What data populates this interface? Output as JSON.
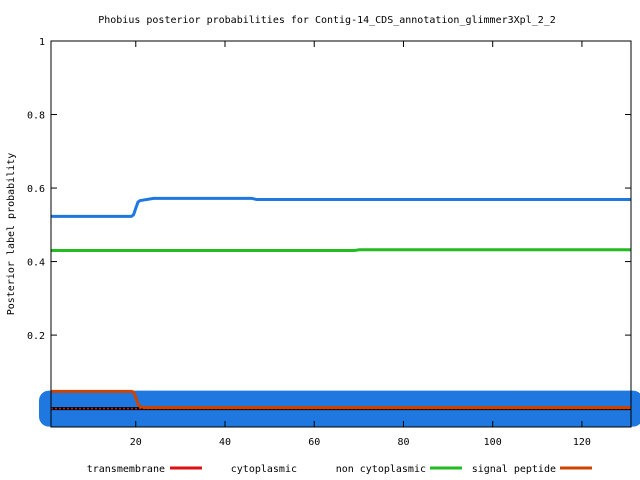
{
  "chart_data": {
    "type": "line",
    "title": "Phobius posterior probabilities for Contig-14_CDS_annotation_glimmer3Xpl_2_2",
    "xlabel": "",
    "ylabel": "Posterior label probability",
    "xlim": [
      1,
      131
    ],
    "ylim": [
      -0.05,
      1
    ],
    "x_ticks": [
      20,
      40,
      60,
      80,
      100,
      120
    ],
    "y_ticks": [
      0.2,
      0.4,
      0.6,
      0.8,
      1
    ],
    "x_tick_labels": [
      "20",
      "40",
      "60",
      "80",
      "100",
      "120"
    ],
    "y_tick_labels": [
      "0.2",
      "0.4",
      "0.6",
      "0.8",
      "1"
    ],
    "grid": false,
    "legend_position": "bottom",
    "series": [
      {
        "name": "transmembrane",
        "color": "#dd1111",
        "style": "dotted",
        "points": [
          [
            1,
            0.0
          ],
          [
            19,
            0.0
          ],
          [
            20,
            0.0
          ],
          [
            131,
            0.0
          ]
        ]
      },
      {
        "name": "cytoplasmic",
        "color": "#000000",
        "style": "solid",
        "points": [
          [
            1,
            0.0
          ],
          [
            131,
            0.0
          ]
        ]
      },
      {
        "name": "non cytoplasmic",
        "color": "#22bb22",
        "style": "solid",
        "points": [
          [
            1,
            0.43
          ],
          [
            69,
            0.43
          ],
          [
            70,
            0.432
          ],
          [
            131,
            0.432
          ]
        ]
      },
      {
        "name": "signal peptide",
        "color": "#cc4400",
        "style": "solid",
        "points": [
          [
            1,
            0.047
          ],
          [
            19,
            0.047
          ],
          [
            19.5,
            0.045
          ],
          [
            20,
            0.03
          ],
          [
            20.5,
            0.012
          ],
          [
            21,
            0.005
          ],
          [
            22,
            0.003
          ],
          [
            131,
            0.003
          ]
        ]
      },
      {
        "name": "",
        "color": "#1e78e0",
        "style": "solid",
        "points": [
          [
            1,
            0.523
          ],
          [
            19,
            0.523
          ],
          [
            19.5,
            0.527
          ],
          [
            20,
            0.545
          ],
          [
            20.5,
            0.562
          ],
          [
            21,
            0.566
          ],
          [
            24,
            0.572
          ],
          [
            46,
            0.572
          ],
          [
            47,
            0.569
          ],
          [
            131,
            0.569
          ]
        ]
      },
      {
        "name": "",
        "color": "#1e78e0",
        "style": "band",
        "points": [
          [
            1,
            0.0
          ],
          [
            131,
            0.0
          ]
        ]
      }
    ]
  }
}
